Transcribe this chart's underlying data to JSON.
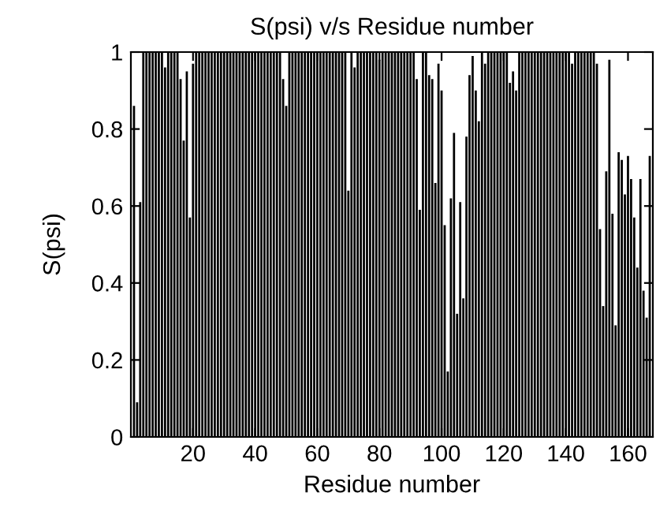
{
  "chart_data": {
    "type": "bar",
    "title": "S(psi) v/s Residue number",
    "xlabel": "Residue number",
    "ylabel": "S(psi)",
    "x": [
      1,
      2,
      3,
      4,
      5,
      6,
      7,
      8,
      9,
      10,
      11,
      12,
      13,
      14,
      15,
      16,
      17,
      18,
      19,
      20,
      21,
      22,
      23,
      24,
      25,
      26,
      27,
      28,
      29,
      30,
      31,
      32,
      33,
      34,
      35,
      36,
      37,
      38,
      39,
      40,
      41,
      42,
      43,
      44,
      45,
      46,
      47,
      48,
      49,
      50,
      51,
      52,
      53,
      54,
      55,
      56,
      57,
      58,
      59,
      60,
      61,
      62,
      63,
      64,
      65,
      66,
      67,
      68,
      69,
      70,
      71,
      72,
      73,
      74,
      75,
      76,
      77,
      78,
      79,
      80,
      81,
      82,
      83,
      84,
      85,
      86,
      87,
      88,
      89,
      90,
      91,
      92,
      93,
      94,
      95,
      96,
      97,
      98,
      99,
      100,
      101,
      102,
      103,
      104,
      105,
      106,
      107,
      108,
      109,
      110,
      111,
      112,
      113,
      114,
      115,
      116,
      117,
      118,
      119,
      120,
      121,
      122,
      123,
      124,
      125,
      126,
      127,
      128,
      129,
      130,
      131,
      132,
      133,
      134,
      135,
      136,
      137,
      138,
      139,
      140,
      141,
      142,
      143,
      144,
      145,
      146,
      147,
      148,
      149,
      150,
      151,
      152,
      153,
      154,
      155,
      156,
      157,
      158,
      159,
      160,
      161,
      162,
      163,
      164,
      165,
      166,
      167
    ],
    "values": [
      0.86,
      0.09,
      0.61,
      1,
      1,
      1,
      1,
      1,
      1,
      1,
      0.96,
      1,
      1,
      1,
      1,
      0.93,
      0.77,
      0.95,
      0.57,
      0.97,
      1,
      1,
      1,
      1,
      1,
      1,
      1,
      1,
      1,
      1,
      1,
      1,
      1,
      1,
      1,
      1,
      1,
      1,
      1,
      1,
      1,
      1,
      1,
      1,
      1,
      1,
      1,
      1,
      0.93,
      0.86,
      1,
      1,
      1,
      1,
      1,
      1,
      1,
      1,
      1,
      1,
      1,
      1,
      1,
      1,
      1,
      1,
      1,
      1,
      1,
      0.64,
      1,
      0.96,
      1,
      1,
      1,
      1,
      1,
      1,
      1,
      0.98,
      1,
      1,
      1,
      1,
      1,
      1,
      1,
      1,
      1,
      1,
      1,
      0.93,
      0.59,
      1,
      1,
      0.94,
      0.93,
      0.66,
      0.97,
      0.9,
      0.55,
      0.17,
      0.62,
      0.79,
      0.32,
      0.61,
      0.36,
      0.78,
      0.94,
      0.99,
      0.9,
      0.82,
      1,
      0.97,
      1,
      1,
      1,
      1,
      1,
      1,
      1,
      0.92,
      0.95,
      0.9,
      1,
      1,
      1,
      1,
      1,
      1,
      1,
      1,
      1,
      1,
      1,
      1,
      1,
      1,
      1,
      1,
      1,
      0.97,
      1,
      1,
      1,
      1,
      1,
      1,
      1,
      0.97,
      0.54,
      0.34,
      0.69,
      0.98,
      0.58,
      0.29,
      0.74,
      0.72,
      0.63,
      0.73,
      0.67,
      0.57,
      0.44,
      0.67,
      0.38,
      0.31,
      0.73
    ],
    "color": "#000000",
    "xlim": [
      0,
      168
    ],
    "xticks": [
      20,
      40,
      60,
      80,
      100,
      120,
      140,
      160
    ],
    "ylim": [
      0,
      1
    ],
    "yticks": [
      0,
      {
        "value": 0.2,
        "label": "0.2"
      },
      {
        "value": 0.4,
        "label": "0.4"
      },
      {
        "value": 0.6,
        "label": "0.6"
      },
      {
        "value": 0.8,
        "label": "0.8"
      },
      1
    ],
    "grid": false,
    "legend": false
  }
}
